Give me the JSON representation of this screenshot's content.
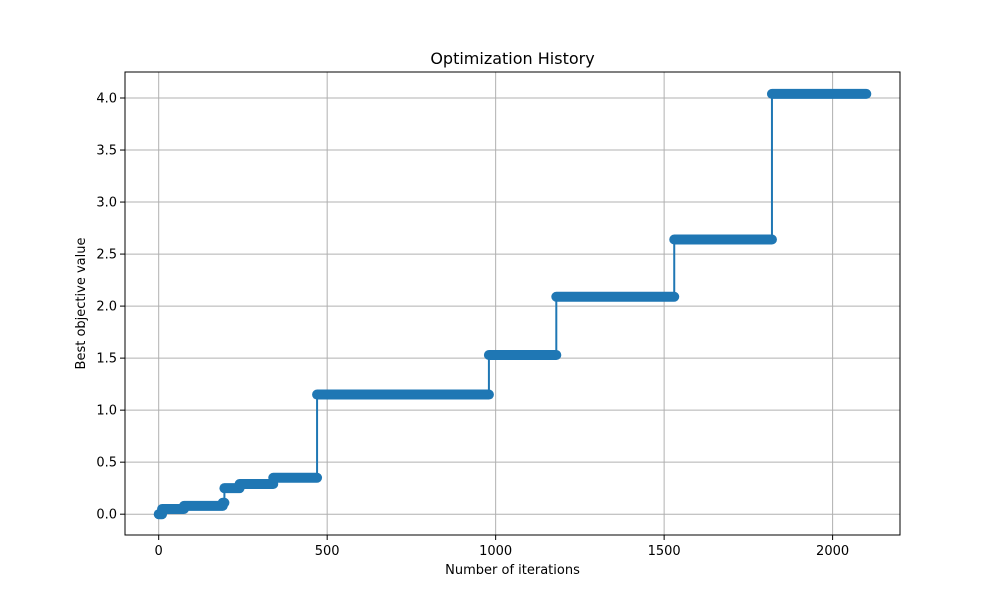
{
  "chart_data": {
    "type": "line",
    "title": "Optimization History",
    "xlabel": "Number of iterations",
    "ylabel": "Best objective value",
    "xlim": [
      -100,
      2200
    ],
    "ylim": [
      -0.2,
      4.25
    ],
    "xticks": [
      0,
      500,
      1000,
      1500,
      2000
    ],
    "yticks": [
      0.0,
      0.5,
      1.0,
      1.5,
      2.0,
      2.5,
      3.0,
      3.5,
      4.0
    ],
    "xtick_labels": [
      "0",
      "500",
      "1000",
      "1500",
      "2000"
    ],
    "ytick_labels": [
      "0.0",
      "0.5",
      "1.0",
      "1.5",
      "2.0",
      "2.5",
      "3.0",
      "3.5",
      "4.0"
    ],
    "grid": true,
    "series": [
      {
        "color": "#1f77b4",
        "marker": "circle",
        "steps": [
          {
            "start": 0,
            "end": 10,
            "value": 0.0
          },
          {
            "start": 10,
            "end": 75,
            "value": 0.05
          },
          {
            "start": 75,
            "end": 190,
            "value": 0.08
          },
          {
            "start": 190,
            "end": 195,
            "value": 0.11
          },
          {
            "start": 195,
            "end": 240,
            "value": 0.25
          },
          {
            "start": 240,
            "end": 340,
            "value": 0.29
          },
          {
            "start": 340,
            "end": 470,
            "value": 0.35
          },
          {
            "start": 470,
            "end": 980,
            "value": 1.15
          },
          {
            "start": 980,
            "end": 1180,
            "value": 1.53
          },
          {
            "start": 1180,
            "end": 1530,
            "value": 2.09
          },
          {
            "start": 1530,
            "end": 1820,
            "value": 2.64
          },
          {
            "start": 1820,
            "end": 2100,
            "value": 4.04
          }
        ]
      }
    ]
  }
}
